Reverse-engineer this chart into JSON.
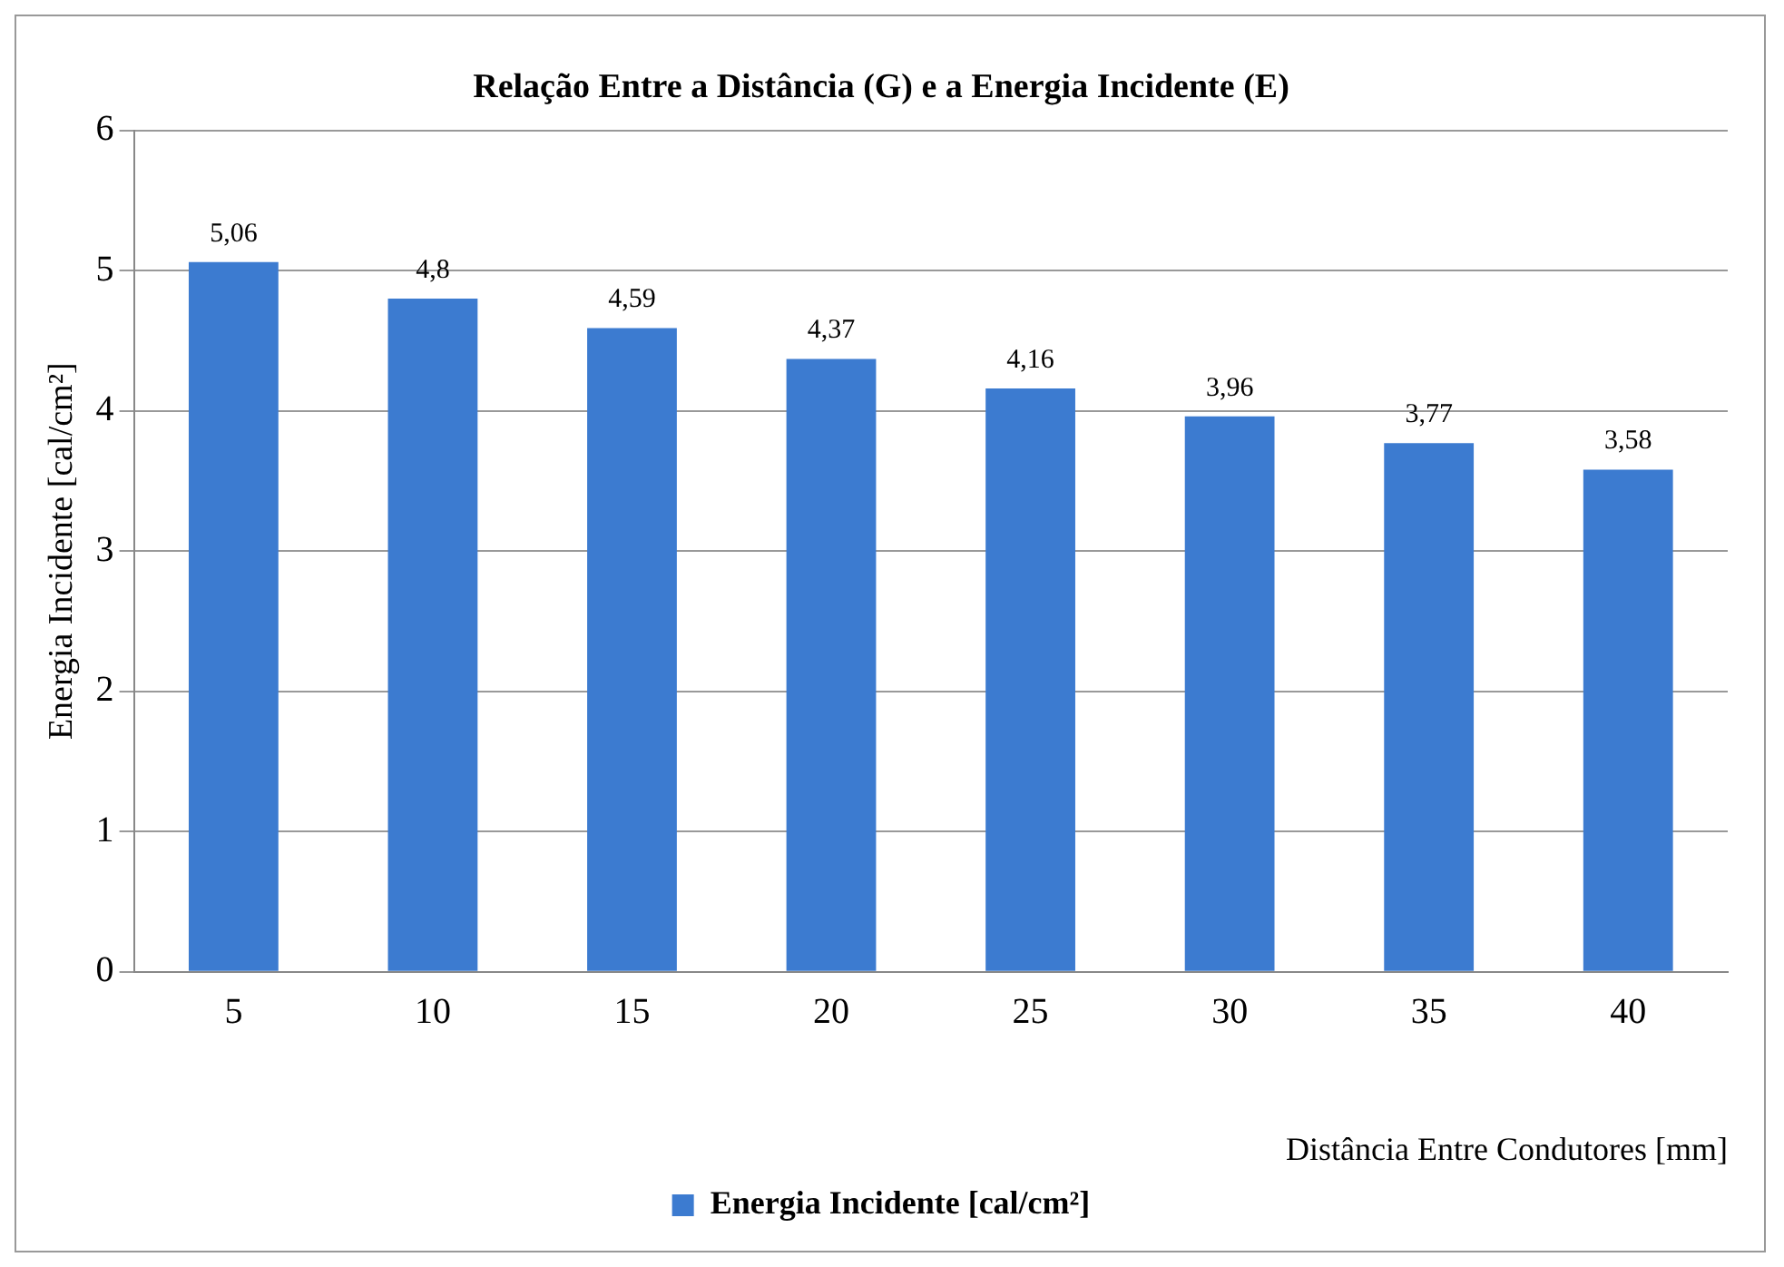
{
  "chart_data": {
    "type": "bar",
    "title": "Relação Entre a Distância (G) e a Energia Incidente (E)",
    "xlabel": "Distância Entre Condutores [mm]",
    "ylabel": "Energia Incidente [cal/cm²]",
    "categories": [
      "5",
      "10",
      "15",
      "20",
      "25",
      "30",
      "35",
      "40"
    ],
    "series": [
      {
        "name": "Energia Incidente [cal/cm²]",
        "color": "#3c7bd0",
        "values": [
          5.06,
          4.8,
          4.59,
          4.37,
          4.16,
          3.96,
          3.77,
          3.58
        ],
        "value_labels": [
          "5,06",
          "4,8",
          "4,59",
          "4,37",
          "4,16",
          "3,96",
          "3,77",
          "3,58"
        ]
      }
    ],
    "ylim": [
      0,
      6
    ],
    "yticks": [
      0,
      1,
      2,
      3,
      4,
      5,
      6
    ],
    "grid": "y",
    "legend": "bottom"
  }
}
